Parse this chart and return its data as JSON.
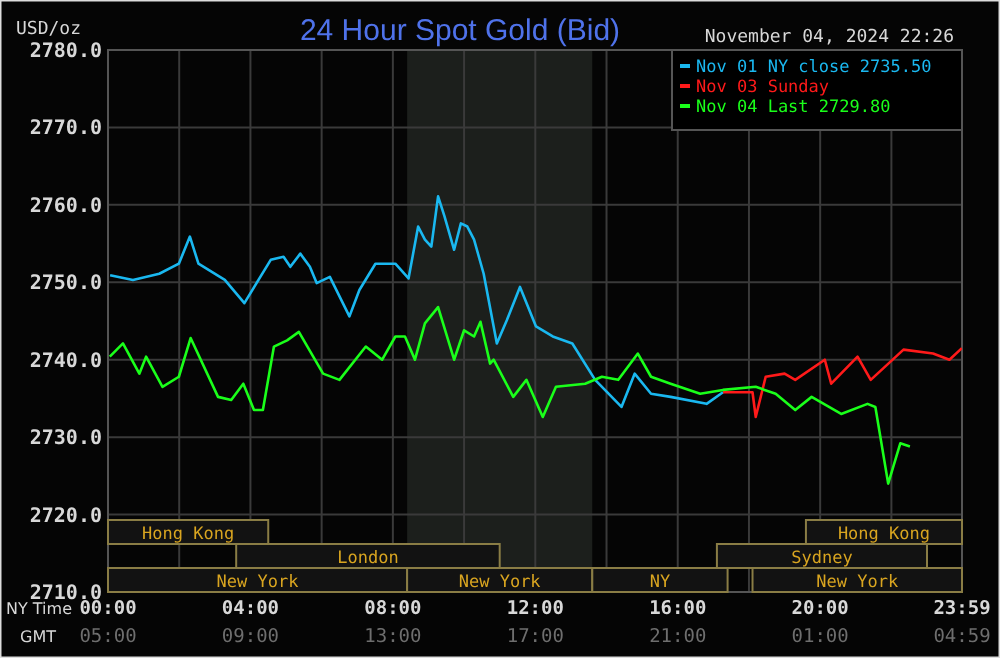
{
  "chart_data": {
    "type": "line",
    "title": "24 Hour Spot Gold (Bid)",
    "subtitle": "November 04, 2024 22:26",
    "ylabel": "USD/oz",
    "xlabel": "NY Time",
    "annotations": [
      "GMT",
      "05:00",
      "09:00",
      "13:00",
      "17:00",
      "21:00",
      "01:00",
      "04:59"
    ],
    "xlim": [
      0,
      23.983
    ],
    "ylim": [
      2710,
      2780
    ],
    "xticks": [
      {
        "value": 0,
        "label": "00:00"
      },
      {
        "value": 2,
        "label": null
      },
      {
        "value": 4,
        "label": "04:00"
      },
      {
        "value": 6,
        "label": null
      },
      {
        "value": 8,
        "label": "08:00"
      },
      {
        "value": 10,
        "label": null
      },
      {
        "value": 12,
        "label": "12:00"
      },
      {
        "value": 14,
        "label": null
      },
      {
        "value": 16,
        "label": "16:00"
      },
      {
        "value": 18,
        "label": null
      },
      {
        "value": 20,
        "label": "20:00"
      },
      {
        "value": 22,
        "label": null
      },
      {
        "value": 23.983,
        "label": "23:59"
      }
    ],
    "yticks": [
      {
        "value": 2710,
        "label": "2710.0"
      },
      {
        "value": 2720,
        "label": "2720.0"
      },
      {
        "value": 2730,
        "label": "2730.0"
      },
      {
        "value": 2740,
        "label": "2740.0"
      },
      {
        "value": 2750,
        "label": "2750.0"
      },
      {
        "value": 2760,
        "label": "2760.0"
      },
      {
        "value": 2770,
        "label": "2770.0"
      },
      {
        "value": 2780,
        "label": "2780.0"
      }
    ],
    "grid": true,
    "legend": "top right",
    "marker": "none",
    "line_style": "solid",
    "bands": [
      {
        "axis": "x",
        "from": 0,
        "to": 8.4,
        "label": "New York"
      },
      {
        "axis": "x",
        "from": 8.4,
        "to": 13.6,
        "label": "New York"
      },
      {
        "axis": "x",
        "from": 13.6,
        "to": 17.4,
        "label": "NY"
      },
      {
        "axis": "x",
        "from": 18.1,
        "to": 23.983,
        "label": "New York"
      },
      {
        "axis": "x",
        "from": 3.6,
        "to": 11,
        "label": "London"
      },
      {
        "axis": "x",
        "from": 17.1,
        "to": 23,
        "label": "Sydney"
      },
      {
        "axis": "x",
        "from": 0,
        "to": 4.5,
        "label": "Hong Kong"
      },
      {
        "axis": "x",
        "from": 19.6,
        "to": 23.983,
        "label": "Hong Kong"
      },
      {
        "axis": "x",
        "from": 8.4,
        "to": 13.6,
        "color": "#1c1f1c"
      }
    ],
    "series": [
      {
        "name": "Nov 01 NY close 2735.50",
        "color": "#1ab8f0",
        "x": [
          0.06,
          0.7,
          1.44,
          1.99,
          2.3,
          2.54,
          3.28,
          3.83,
          4.57,
          4.93,
          5.12,
          5.4,
          5.67,
          5.86,
          6.23,
          6.78,
          7.06,
          7.51,
          8.07,
          8.44,
          8.71,
          8.9,
          9.08,
          9.27,
          9.45,
          9.72,
          9.91,
          10.09,
          10.28,
          10.55,
          10.92,
          11.2,
          11.57,
          12.02,
          12.49,
          13.04,
          13.68,
          14.42,
          14.79,
          15.25,
          15.8,
          16.81,
          17.27
        ],
        "values": [
          2750.9,
          2750.3,
          2751.1,
          2752.4,
          2755.9,
          2752.4,
          2750.3,
          2747.3,
          2752.9,
          2753.3,
          2752,
          2753.7,
          2752,
          2749.9,
          2750.7,
          2745.6,
          2749,
          2752.4,
          2752.4,
          2750.5,
          2757.2,
          2755.5,
          2754.6,
          2761.1,
          2758.5,
          2754.2,
          2757.6,
          2757.2,
          2755.5,
          2751.1,
          2742.1,
          2745.1,
          2749.4,
          2744.3,
          2743,
          2742.1,
          2737.4,
          2733.9,
          2738.2,
          2735.6,
          2735.2,
          2734.3,
          2735.8
        ]
      },
      {
        "name": "Nov 03 Sunday",
        "color": "#ff1a1a",
        "x": [
          17.27,
          18.1,
          18.19,
          18.47,
          19,
          19.3,
          20.13,
          20.31,
          21.05,
          21.42,
          22.34,
          23.17,
          23.63,
          23.98
        ],
        "values": [
          2735.8,
          2735.8,
          2732.6,
          2737.8,
          2738.2,
          2737.4,
          2740,
          2736.9,
          2740.4,
          2737.4,
          2741.3,
          2740.8,
          2740,
          2741.5
        ]
      },
      {
        "name": "Nov 04 Last 2729.80",
        "color": "#1aff1a",
        "x": [
          0.05,
          0.42,
          0.88,
          1.07,
          1.53,
          1.99,
          2.32,
          3.09,
          3.46,
          3.8,
          4.1,
          4.35,
          4.66,
          5.03,
          5.36,
          6.04,
          6.5,
          7.24,
          7.7,
          8.07,
          8.34,
          8.62,
          8.9,
          9.27,
          9.72,
          10,
          10.28,
          10.46,
          10.73,
          10.83,
          11.38,
          11.75,
          12.21,
          12.58,
          13.4,
          13.87,
          14.33,
          14.88,
          15.25,
          15.8,
          16.63,
          17.27,
          18.19,
          18.75,
          19.3,
          19.76,
          20.59,
          21.33,
          21.55,
          21.91,
          22.25,
          22.52
        ],
        "values": [
          2740.4,
          2742.1,
          2738.2,
          2740.4,
          2736.5,
          2737.8,
          2742.8,
          2735.2,
          2734.8,
          2736.9,
          2733.5,
          2733.5,
          2741.7,
          2742.5,
          2743.6,
          2738.2,
          2737.4,
          2741.7,
          2740,
          2743,
          2743,
          2740,
          2744.7,
          2746.8,
          2740,
          2743.8,
          2743,
          2744.9,
          2739.5,
          2740,
          2735.2,
          2737.4,
          2732.6,
          2736.5,
          2736.9,
          2737.8,
          2737.4,
          2740.8,
          2737.8,
          2736.9,
          2735.6,
          2736.1,
          2736.5,
          2735.6,
          2733.5,
          2735.2,
          2733,
          2734.3,
          2733.9,
          2724,
          2729.2,
          2728.8
        ]
      }
    ]
  }
}
